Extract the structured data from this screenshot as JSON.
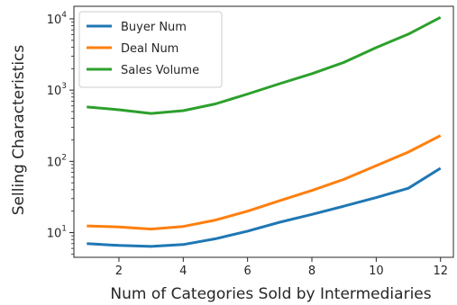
{
  "chart_data": {
    "type": "line",
    "title": "",
    "xlabel": "Num of Categories Sold by Intermediaries",
    "ylabel": "Selling Characteristics",
    "yscale": "log",
    "xlim": [
      0.6,
      12.4
    ],
    "ylim": [
      4.5,
      15000
    ],
    "x_ticks": [
      2,
      4,
      6,
      8,
      10,
      12
    ],
    "x_tick_labels": [
      "2",
      "4",
      "6",
      "8",
      "10",
      "12"
    ],
    "y_ticks": [
      10,
      100,
      1000,
      10000
    ],
    "y_tick_labels": [
      {
        "base": "10",
        "exp": "1"
      },
      {
        "base": "10",
        "exp": "2"
      },
      {
        "base": "10",
        "exp": "3"
      },
      {
        "base": "10",
        "exp": "4"
      }
    ],
    "grid": false,
    "legend_position": "top-left",
    "x": [
      1,
      2,
      3,
      4,
      5,
      6,
      7,
      8,
      9,
      10,
      11,
      12
    ],
    "series": [
      {
        "name": "Buyer Num",
        "color": "#1f77b4",
        "values": [
          7,
          6.6,
          6.4,
          6.8,
          8.2,
          10.5,
          14,
          18,
          23.5,
          31,
          42,
          80
        ]
      },
      {
        "name": "Deal Num",
        "color": "#ff7f0e",
        "values": [
          12.4,
          12,
          11.2,
          12.2,
          15,
          20,
          28,
          39,
          56,
          87,
          135,
          230
        ]
      },
      {
        "name": "Sales Volume",
        "color": "#2ca02c",
        "values": [
          580,
          530,
          470,
          515,
          640,
          880,
          1230,
          1700,
          2450,
          3950,
          6100,
          10500
        ]
      }
    ]
  }
}
